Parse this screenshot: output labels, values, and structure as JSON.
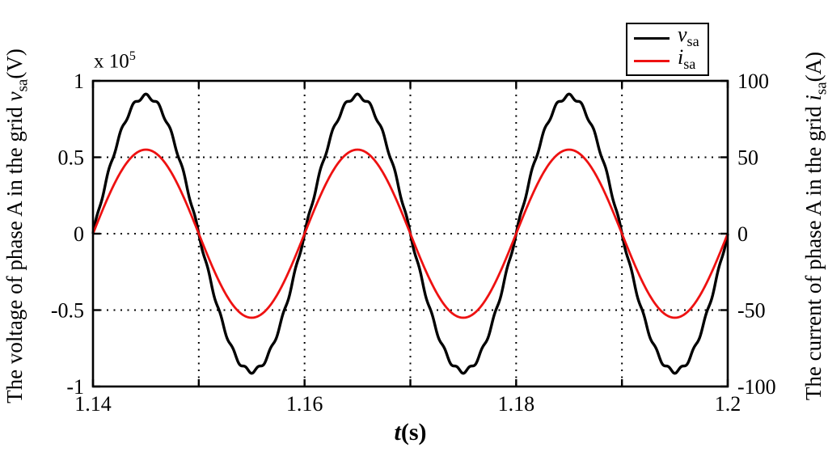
{
  "chart_data": {
    "type": "line",
    "title": "",
    "grid_style": "dotted",
    "xlabel": {
      "var": "t",
      "unit": "(s)"
    },
    "x_axis": {
      "min": 1.14,
      "max": 1.2,
      "major_ticks": [
        1.14,
        1.15,
        1.16,
        1.17,
        1.18,
        1.19,
        1.2
      ],
      "labeled_ticks": [
        1.14,
        1.16,
        1.18,
        1.2
      ],
      "tick_labels": [
        "1.14",
        "1.16",
        "1.18",
        "1.2"
      ],
      "gridlines": [
        1.15,
        1.16,
        1.17,
        1.18,
        1.19
      ]
    },
    "left_axis": {
      "label_prefix": "The voltage of phase A in the grid ",
      "label_var": "v",
      "label_sub": "sa",
      "label_unit": "(V)",
      "multiplier_base": "x 10",
      "multiplier_exp": "5",
      "min": -1,
      "max": 1,
      "ticks": [
        -1,
        -0.5,
        0,
        0.5,
        1
      ],
      "tick_labels": [
        "-1",
        "-0.5",
        "0",
        "0.5",
        "1"
      ],
      "gridlines": [
        -0.5,
        0,
        0.5
      ]
    },
    "right_axis": {
      "label_prefix": "The current of phase A in the grid ",
      "label_var": "i",
      "label_sub": "sa",
      "label_unit": "(A)",
      "min": -100,
      "max": 100,
      "ticks": [
        -100,
        -50,
        0,
        50,
        100
      ],
      "tick_labels": [
        "-100",
        "-50",
        "0",
        "50",
        "100"
      ]
    },
    "series": [
      {
        "name": "vsa",
        "legend_var": "v",
        "legend_sub": "sa",
        "axis": "left",
        "color": "#000000",
        "linewidth": 3.4,
        "waveform": "sine",
        "amplitude": 0.9,
        "frequency_hz": 50,
        "phase_deg": 0,
        "t_start": 1.14,
        "ripple_amplitude": 0.014,
        "ripple_frequency_hz": 850
      },
      {
        "name": "isa",
        "legend_var": "i",
        "legend_sub": "sa",
        "axis": "right",
        "color": "#ee1111",
        "linewidth": 2.8,
        "waveform": "sine",
        "amplitude": 55,
        "frequency_hz": 50,
        "phase_deg": 0,
        "t_start": 1.14,
        "ripple_amplitude": 0,
        "ripple_frequency_hz": 0
      }
    ],
    "legend": {
      "position": "top-right",
      "border": true
    }
  }
}
